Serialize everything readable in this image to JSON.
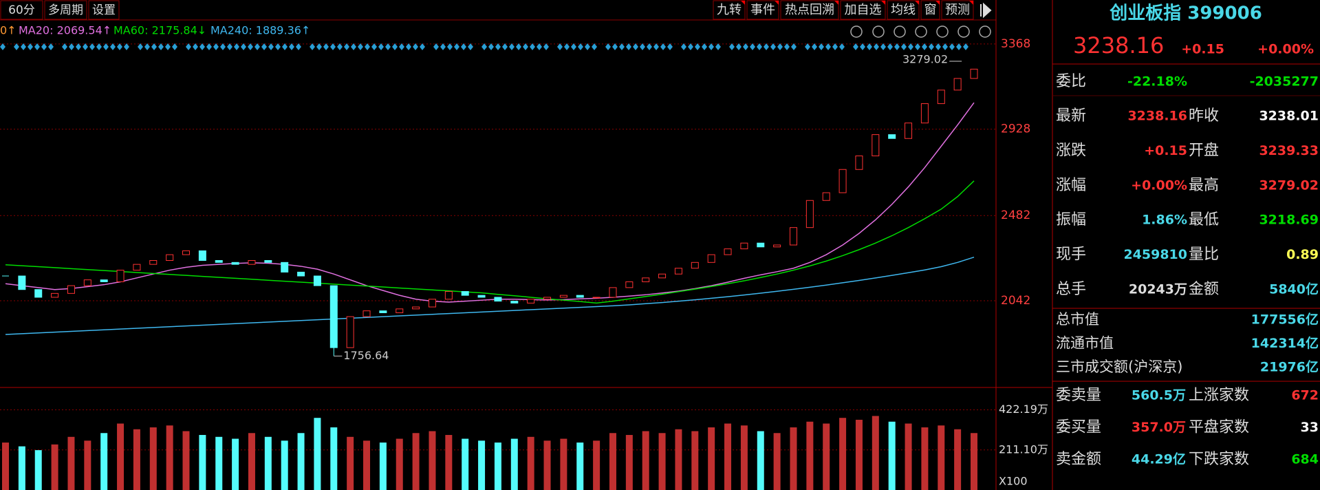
{
  "toolbar": {
    "left": [
      "60分",
      "多周期",
      "设置"
    ],
    "right": [
      "九转",
      "事件",
      "热点回溯",
      "加自选",
      "均线",
      "窗",
      "预测"
    ]
  },
  "chart": {
    "type": "candlestick",
    "legend_lead": "0↑",
    "ylim": [
      1605,
      3389
    ],
    "yticks": [
      2042,
      2482,
      2928,
      3368
    ],
    "high": 3279.02,
    "high_index": 58,
    "low": 1756.64,
    "low_index": 20,
    "closes": [
      2170,
      2100,
      2060,
      2080,
      2120,
      2150,
      2140,
      2200,
      2230,
      2250,
      2280,
      2300,
      2250,
      2240,
      2230,
      2250,
      2240,
      2190,
      2170,
      2120,
      1800,
      1960,
      1990,
      1980,
      2000,
      2010,
      2050,
      2090,
      2070,
      2060,
      2040,
      2030,
      2050,
      2060,
      2070,
      2060,
      2060,
      2110,
      2140,
      2160,
      2180,
      2210,
      2240,
      2280,
      2310,
      2340,
      2320,
      2330,
      2420,
      2560,
      2600,
      2720,
      2790,
      2900,
      2880,
      2960,
      3060,
      3130,
      3190,
      3238.16
    ],
    "series": [
      {
        "legend": "MA20: 2069.54↑",
        "color": "#e070e0",
        "values": [
          2130,
          2120,
          2110,
          2100,
          2105,
          2115,
          2125,
          2140,
          2160,
          2180,
          2200,
          2215,
          2225,
          2230,
          2235,
          2238,
          2236,
          2230,
          2220,
          2205,
          2180,
          2150,
          2120,
          2095,
          2070,
          2050,
          2040,
          2035,
          2040,
          2045,
          2050,
          2050,
          2048,
          2046,
          2048,
          2052,
          2055,
          2060,
          2066,
          2073,
          2082,
          2092,
          2105,
          2120,
          2138,
          2158,
          2176,
          2192,
          2210,
          2240,
          2280,
          2330,
          2390,
          2460,
          2540,
          2630,
          2730,
          2840,
          2950,
          3065
        ]
      },
      {
        "legend": "MA60: 2175.84↓",
        "color": "#00dd00",
        "values": [
          2228,
          2223,
          2218,
          2213,
          2208,
          2203,
          2198,
          2193,
          2188,
          2183,
          2178,
          2173,
          2168,
          2163,
          2158,
          2153,
          2148,
          2143,
          2138,
          2133,
          2128,
          2123,
          2118,
          2113,
          2108,
          2103,
          2098,
          2093,
          2088,
          2083,
          2075,
          2068,
          2060,
          2052,
          2045,
          2038,
          2030,
          2040,
          2052,
          2064,
          2076,
          2089,
          2102,
          2116,
          2130,
          2145,
          2162,
          2180,
          2200,
          2222,
          2247,
          2275,
          2306,
          2340,
          2378,
          2420,
          2466,
          2515,
          2580,
          2661
        ]
      },
      {
        "legend": "MA240: 1889.36↑",
        "color": "#3fb8f0",
        "values": [
          1868,
          1872,
          1876,
          1880,
          1884,
          1888,
          1892,
          1896,
          1900,
          1904,
          1908,
          1912,
          1916,
          1920,
          1924,
          1928,
          1932,
          1936,
          1940,
          1944,
          1948,
          1952,
          1956,
          1960,
          1964,
          1968,
          1972,
          1976,
          1980,
          1984,
          1988,
          1992,
          1996,
          2000,
          2004,
          2008,
          2012,
          2016,
          2021,
          2027,
          2033,
          2040,
          2047,
          2055,
          2063,
          2072,
          2081,
          2091,
          2101,
          2112,
          2123,
          2135,
          2147,
          2160,
          2173,
          2187,
          2201,
          2218,
          2240,
          2267
        ]
      }
    ],
    "volume": {
      "ylim": [
        0,
        533
      ],
      "yticks": [
        {
          "value": 211.1,
          "label": "211.10万"
        },
        {
          "value": 422.19,
          "label": "422.19万"
        }
      ],
      "unit": "X100",
      "values": [
        250,
        230,
        210,
        240,
        280,
        260,
        300,
        350,
        320,
        330,
        340,
        310,
        290,
        280,
        270,
        300,
        280,
        260,
        300,
        380,
        330,
        280,
        260,
        250,
        270,
        300,
        310,
        290,
        270,
        260,
        250,
        270,
        280,
        260,
        270,
        250,
        260,
        300,
        290,
        310,
        300,
        320,
        310,
        330,
        350,
        340,
        310,
        300,
        330,
        360,
        350,
        380,
        370,
        390,
        360,
        350,
        330,
        340,
        320,
        300
      ]
    }
  },
  "quote": {
    "title": "创业板指 399006",
    "price": "3238.16",
    "change": "+0.15",
    "percent": "+0.00%",
    "weibi": [
      "委比",
      "-22.18%",
      "-2035277"
    ],
    "rows": [
      [
        "最新",
        "3238.16",
        "昨收",
        "3238.01"
      ],
      [
        "涨跌",
        "+0.15",
        "开盘",
        "3239.33"
      ],
      [
        "涨幅",
        "+0.00%",
        "最高",
        "3279.02"
      ],
      [
        "振幅",
        "1.86%",
        "最低",
        "3218.69"
      ],
      [
        "现手",
        "2459810",
        "量比",
        "0.89"
      ],
      [
        "总手",
        "20243万",
        "金额",
        "5840亿"
      ]
    ],
    "market": [
      [
        "总市值",
        "177556亿"
      ],
      [
        "流通市值",
        "142314亿"
      ],
      [
        "三市成交额(沪深京)",
        "21976亿"
      ]
    ],
    "orders": [
      [
        "委卖量",
        "560.5万",
        "上涨家数",
        "672"
      ],
      [
        "委买量",
        "357.0万",
        "平盘家数",
        "33"
      ],
      [
        "卖金额",
        "44.29亿",
        "下跌家数",
        "684"
      ]
    ]
  }
}
